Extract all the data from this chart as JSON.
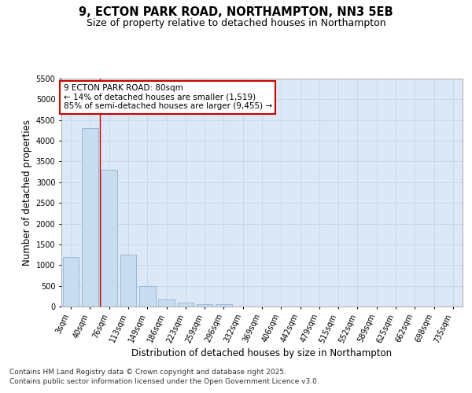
{
  "title_line1": "9, ECTON PARK ROAD, NORTHAMPTON, NN3 5EB",
  "title_line2": "Size of property relative to detached houses in Northampton",
  "xlabel": "Distribution of detached houses by size in Northampton",
  "ylabel": "Number of detached properties",
  "categories": [
    "3sqm",
    "40sqm",
    "76sqm",
    "113sqm",
    "149sqm",
    "186sqm",
    "223sqm",
    "259sqm",
    "296sqm",
    "332sqm",
    "369sqm",
    "406sqm",
    "442sqm",
    "479sqm",
    "515sqm",
    "552sqm",
    "589sqm",
    "625sqm",
    "662sqm",
    "698sqm",
    "735sqm"
  ],
  "values": [
    1200,
    4300,
    3300,
    1250,
    490,
    170,
    90,
    50,
    50,
    0,
    0,
    0,
    0,
    0,
    0,
    0,
    0,
    0,
    0,
    0,
    0
  ],
  "bar_color": "#c8dcf0",
  "bar_edgecolor": "#9ab8d8",
  "vline_x_index": 2,
  "vline_color": "#cc0000",
  "annotation_text": "9 ECTON PARK ROAD: 80sqm\n← 14% of detached houses are smaller (1,519)\n85% of semi-detached houses are larger (9,455) →",
  "annotation_box_edgecolor": "#cc0000",
  "annotation_box_facecolor": "#ffffff",
  "ylim": [
    0,
    5500
  ],
  "yticks": [
    0,
    500,
    1000,
    1500,
    2000,
    2500,
    3000,
    3500,
    4000,
    4500,
    5000,
    5500
  ],
  "grid_color": "#c8d8ec",
  "background_color": "#dce8f5",
  "footer_line1": "Contains HM Land Registry data © Crown copyright and database right 2025.",
  "footer_line2": "Contains public sector information licensed under the Open Government Licence v3.0.",
  "title_fontsize": 10.5,
  "subtitle_fontsize": 9,
  "axis_label_fontsize": 8.5,
  "tick_fontsize": 7,
  "annotation_fontsize": 7.5,
  "footer_fontsize": 6.5
}
